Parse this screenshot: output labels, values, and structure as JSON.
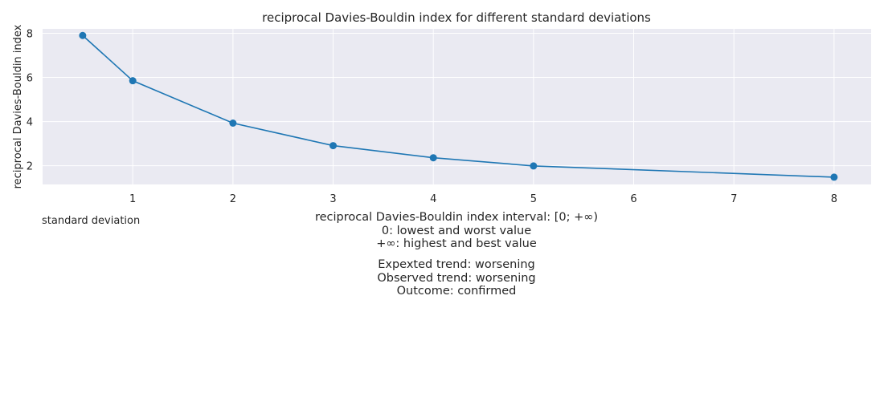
{
  "chart_data": {
    "type": "line",
    "title": "reciprocal Davies-Bouldin index for different standard deviations",
    "xlabel": "standard deviation",
    "ylabel": "reciprocal Davies-Bouldin index",
    "x": [
      0.5,
      1,
      2,
      3,
      4,
      5,
      8
    ],
    "series": [
      {
        "values": [
          7.9,
          5.85,
          3.93,
          2.91,
          2.36,
          1.99,
          1.48
        ],
        "color": "#1f77b4",
        "marker": "circle"
      }
    ],
    "xlim": [
      0.1,
      8.37
    ],
    "ylim": [
      1.15,
      8.2
    ],
    "xticks": [
      1,
      2,
      3,
      4,
      5,
      6,
      7,
      8
    ],
    "yticks": [
      2,
      4,
      6,
      8
    ],
    "grid": true,
    "background": "#eaeaf2",
    "grid_color": "#ffffff"
  },
  "notes": {
    "interval": [
      "reciprocal Davies-Bouldin index interval: [0; +∞)",
      "0: lowest and worst value",
      "+∞: highest and best value"
    ],
    "trend": [
      "Expexted trend: worsening",
      "Observed trend: worsening",
      "Outcome: confirmed"
    ]
  }
}
